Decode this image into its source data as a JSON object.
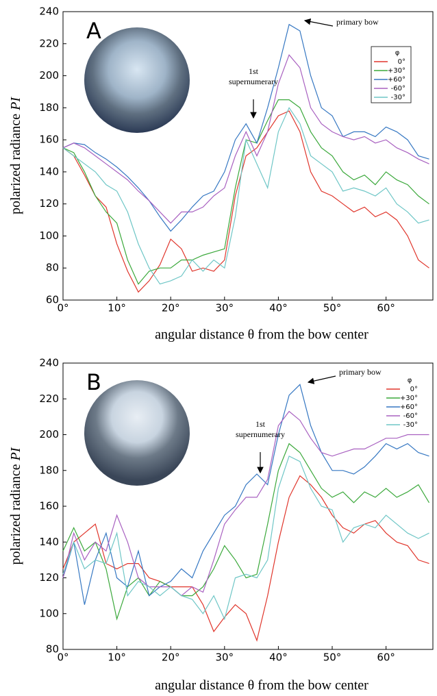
{
  "chart_data": [
    {
      "type": "line",
      "panel_label": "A",
      "y_label": "polarized radiance",
      "y_label_var": "PI",
      "x_label": "angular distance θ from the bow center",
      "annotations": [
        "primary bow",
        "1st",
        "supernumerary"
      ],
      "legend_title": "φ",
      "legend_box": true,
      "xlim": [
        0,
        68.7
      ],
      "ylim": [
        60,
        240
      ],
      "xticks": [
        {
          "value": 0,
          "label": "0°"
        },
        {
          "value": 10,
          "label": "10°"
        },
        {
          "value": 20,
          "label": "20°"
        },
        {
          "value": 30,
          "label": "30°"
        },
        {
          "value": 40,
          "label": "40°"
        },
        {
          "value": 50,
          "label": "50°"
        },
        {
          "value": 60,
          "label": "60°"
        }
      ],
      "yticks": [
        60,
        80,
        100,
        120,
        140,
        160,
        180,
        200,
        220,
        240
      ],
      "x": [
        0,
        2,
        4,
        6,
        8,
        10,
        12,
        14,
        16,
        18,
        20,
        22,
        24,
        26,
        28,
        30,
        32,
        34,
        36,
        38,
        40,
        42,
        44,
        46,
        48,
        50,
        52,
        54,
        56,
        58,
        60,
        62,
        64,
        66,
        68
      ],
      "series": [
        {
          "name": "0°",
          "color": "#e0352b",
          "values": [
            155,
            150,
            138,
            125,
            118,
            95,
            78,
            65,
            72,
            82,
            98,
            92,
            78,
            80,
            78,
            85,
            125,
            150,
            155,
            165,
            175,
            178,
            165,
            140,
            128,
            125,
            120,
            115,
            118,
            112,
            115,
            110,
            100,
            85,
            80
          ]
        },
        {
          "name": "+30°",
          "color": "#3aa83a",
          "values": [
            155,
            152,
            140,
            125,
            115,
            108,
            85,
            70,
            78,
            80,
            80,
            85,
            85,
            88,
            90,
            92,
            130,
            160,
            158,
            172,
            185,
            185,
            180,
            165,
            155,
            150,
            140,
            135,
            138,
            132,
            140,
            135,
            132,
            125,
            120
          ]
        },
        {
          "name": "+60°",
          "color": "#3577c2",
          "values": [
            155,
            158,
            157,
            152,
            148,
            143,
            137,
            130,
            122,
            112,
            103,
            110,
            118,
            125,
            128,
            140,
            160,
            170,
            158,
            180,
            205,
            232,
            228,
            200,
            180,
            175,
            162,
            165,
            165,
            162,
            168,
            165,
            160,
            150,
            148
          ]
        },
        {
          "name": "-60°",
          "color": "#a860c0",
          "values": [
            155,
            158,
            155,
            150,
            145,
            140,
            135,
            128,
            122,
            115,
            108,
            115,
            115,
            118,
            125,
            130,
            150,
            165,
            150,
            165,
            195,
            213,
            205,
            180,
            170,
            165,
            162,
            160,
            162,
            158,
            160,
            155,
            152,
            148,
            145
          ]
        },
        {
          "name": "-30°",
          "color": "#6ec6c6",
          "values": [
            155,
            150,
            145,
            140,
            132,
            128,
            115,
            95,
            80,
            70,
            72,
            75,
            85,
            78,
            85,
            80,
            112,
            160,
            145,
            130,
            165,
            180,
            170,
            150,
            145,
            140,
            128,
            130,
            128,
            125,
            130,
            120,
            115,
            108,
            110
          ]
        }
      ]
    },
    {
      "type": "line",
      "panel_label": "B",
      "y_label": "polarized radiance",
      "y_label_var": "PI",
      "x_label": "angular distance θ from the bow center",
      "annotations": [
        "primary bow",
        "1st",
        "supernumerary"
      ],
      "legend_title": "φ",
      "legend_box": false,
      "xlim": [
        0,
        68.7
      ],
      "ylim": [
        80,
        240
      ],
      "xticks": [
        {
          "value": 0,
          "label": "0°"
        },
        {
          "value": 10,
          "label": "10°"
        },
        {
          "value": 20,
          "label": "20°"
        },
        {
          "value": 30,
          "label": "30°"
        },
        {
          "value": 40,
          "label": "40°"
        },
        {
          "value": 50,
          "label": "50°"
        },
        {
          "value": 60,
          "label": "60°"
        }
      ],
      "yticks": [
        80,
        100,
        120,
        140,
        160,
        180,
        200,
        220,
        240
      ],
      "x": [
        0,
        2,
        4,
        6,
        8,
        10,
        12,
        14,
        16,
        18,
        20,
        22,
        24,
        26,
        28,
        30,
        32,
        34,
        36,
        38,
        40,
        42,
        44,
        46,
        48,
        50,
        52,
        54,
        56,
        58,
        60,
        62,
        64,
        66,
        68
      ],
      "series": [
        {
          "name": "0°",
          "color": "#e0352b",
          "values": [
            125,
            140,
            145,
            150,
            128,
            125,
            128,
            128,
            120,
            118,
            115,
            115,
            115,
            105,
            90,
            98,
            105,
            100,
            85,
            110,
            140,
            165,
            177,
            172,
            165,
            155,
            148,
            145,
            150,
            152,
            145,
            140,
            138,
            130,
            128
          ]
        },
        {
          "name": "+30°",
          "color": "#3aa83a",
          "values": [
            135,
            148,
            135,
            140,
            125,
            97,
            115,
            120,
            110,
            118,
            115,
            110,
            110,
            115,
            125,
            138,
            130,
            120,
            122,
            150,
            180,
            195,
            190,
            180,
            170,
            165,
            168,
            162,
            168,
            165,
            170,
            165,
            168,
            172,
            162
          ]
        },
        {
          "name": "+60°",
          "color": "#3577c2",
          "values": [
            120,
            140,
            105,
            130,
            145,
            120,
            115,
            135,
            110,
            115,
            118,
            125,
            120,
            135,
            145,
            155,
            160,
            172,
            178,
            172,
            200,
            222,
            228,
            205,
            190,
            180,
            180,
            178,
            182,
            188,
            195,
            192,
            195,
            190,
            188
          ]
        },
        {
          "name": "-60°",
          "color": "#a860c0",
          "values": [
            120,
            145,
            130,
            140,
            135,
            155,
            140,
            120,
            115,
            115,
            115,
            110,
            115,
            112,
            130,
            150,
            158,
            165,
            165,
            175,
            205,
            213,
            208,
            198,
            190,
            188,
            190,
            192,
            192,
            195,
            198,
            198,
            200,
            200,
            200
          ]
        },
        {
          "name": "-30°",
          "color": "#6ec6c6",
          "values": [
            122,
            140,
            125,
            130,
            128,
            145,
            110,
            118,
            115,
            110,
            115,
            110,
            108,
            100,
            110,
            97,
            120,
            122,
            120,
            130,
            170,
            188,
            185,
            170,
            160,
            158,
            140,
            148,
            150,
            148,
            155,
            150,
            145,
            142,
            145
          ]
        }
      ]
    }
  ]
}
